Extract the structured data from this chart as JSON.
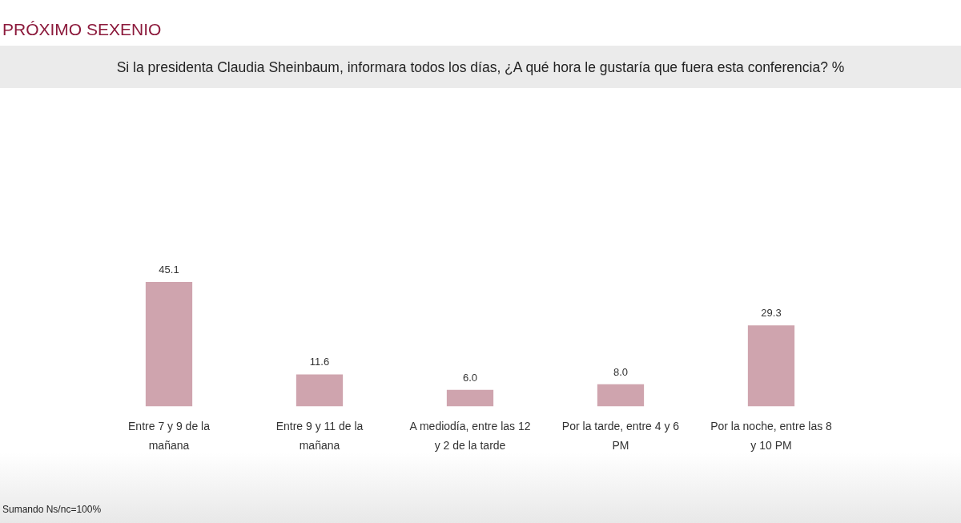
{
  "chart_data": {
    "type": "bar",
    "title": "PRÓXIMO SEXENIO",
    "subtitle": "Si la presidenta Claudia Sheinbaum, informara todos los días, ¿A qué hora le gustaría que fuera esta conferencia? %",
    "categories": [
      "Entre 7 y 9 de la mañana",
      "Entre 9 y 11 de la mañana",
      "A mediodía, entre las 12 y 2 de la tarde",
      "Por la tarde, entre 4 y 6 PM",
      "Por la noche, entre las 8 y 10 PM"
    ],
    "values": [
      45.1,
      11.6,
      6.0,
      8.0,
      29.3
    ],
    "color": "#cfa4ae",
    "value_labels": [
      "45.1",
      "11.6",
      "6.0",
      "8.0",
      "29.3"
    ],
    "tick_labels": "x",
    "annotations": [
      "Sumando Ns/nc=100%"
    ]
  }
}
